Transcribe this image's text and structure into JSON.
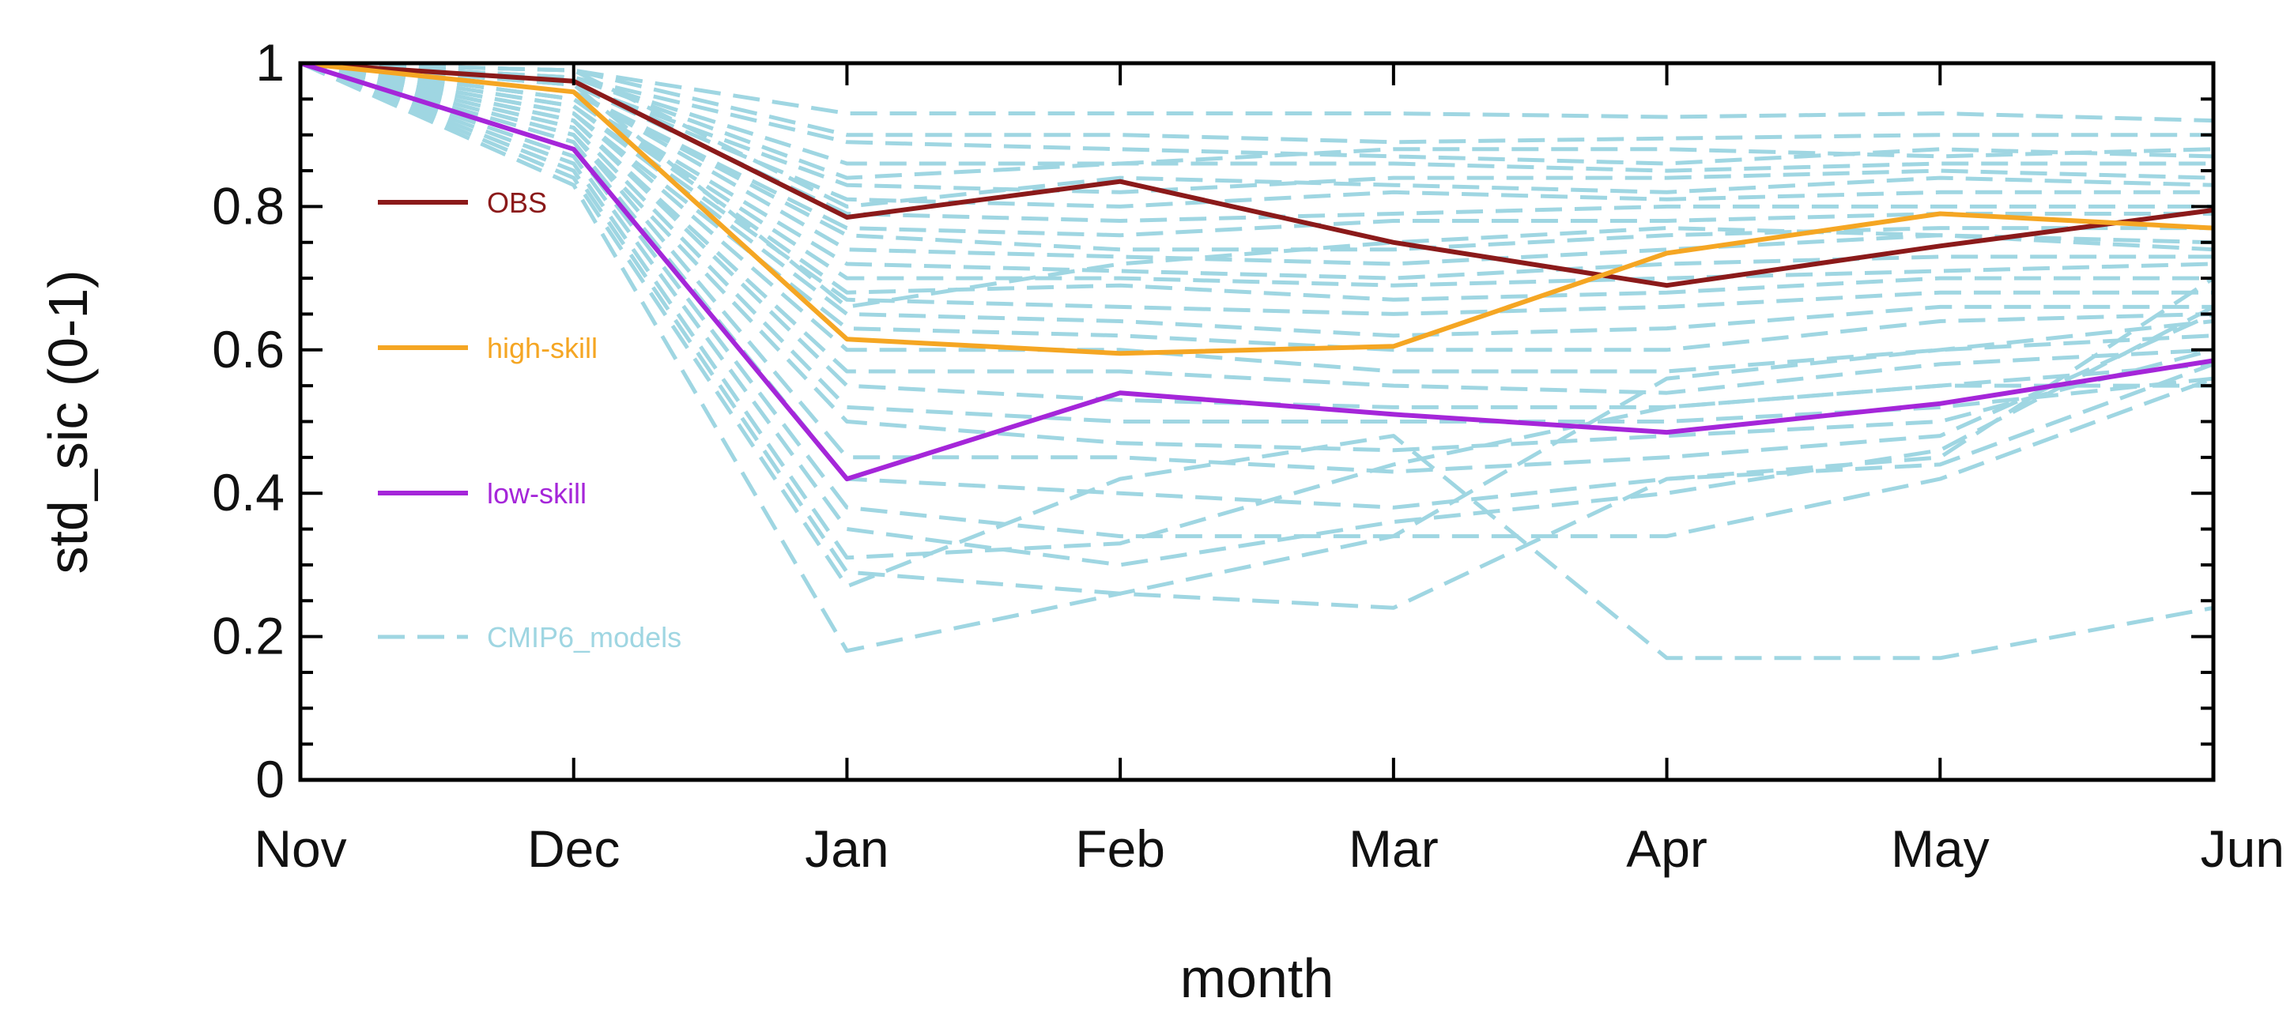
{
  "chart_data": {
    "type": "line",
    "title": "",
    "xlabel": "month",
    "ylabel": "std_sic (0-1)",
    "categories": [
      "Nov",
      "Dec",
      "Jan",
      "Feb",
      "Mar",
      "Apr",
      "May",
      "Jun"
    ],
    "ylim": [
      0,
      1
    ],
    "yticks": [
      "0",
      "0.2",
      "0.4",
      "0.6",
      "0.8",
      "1"
    ],
    "ytick_values": [
      0,
      0.2,
      0.4,
      0.6,
      0.8,
      1
    ],
    "grid": false,
    "legend_placement": "left",
    "legend": [
      "OBS",
      "high-skill",
      "low-skill",
      "CMIP6_models"
    ],
    "series": [
      {
        "name": "OBS",
        "color": "#8b1a1a",
        "style": "solid",
        "values": [
          1.0,
          0.975,
          0.785,
          0.835,
          0.75,
          0.69,
          0.745,
          0.795
        ]
      },
      {
        "name": "high-skill",
        "color": "#f5a623",
        "style": "solid",
        "values": [
          1.0,
          0.96,
          0.615,
          0.595,
          0.605,
          0.735,
          0.79,
          0.77
        ]
      },
      {
        "name": "low-skill",
        "color": "#a526d9",
        "style": "solid",
        "values": [
          1.0,
          0.88,
          0.42,
          0.54,
          0.51,
          0.485,
          0.525,
          0.585
        ]
      }
    ],
    "models": {
      "name": "CMIP6_models",
      "color": "#9fd6e2",
      "style": "dashed",
      "series": [
        [
          1.0,
          0.99,
          0.93,
          0.93,
          0.93,
          0.925,
          0.93,
          0.92
        ],
        [
          1.0,
          0.99,
          0.9,
          0.9,
          0.89,
          0.895,
          0.9,
          0.9
        ],
        [
          1.0,
          0.98,
          0.89,
          0.88,
          0.87,
          0.86,
          0.88,
          0.87
        ],
        [
          1.0,
          0.98,
          0.86,
          0.86,
          0.88,
          0.88,
          0.87,
          0.88
        ],
        [
          1.0,
          0.98,
          0.84,
          0.86,
          0.86,
          0.85,
          0.86,
          0.86
        ],
        [
          1.0,
          0.97,
          0.83,
          0.82,
          0.84,
          0.84,
          0.85,
          0.84
        ],
        [
          1.0,
          0.97,
          0.81,
          0.8,
          0.82,
          0.81,
          0.82,
          0.82
        ],
        [
          1.0,
          0.97,
          0.79,
          0.78,
          0.79,
          0.8,
          0.8,
          0.8
        ],
        [
          1.0,
          0.96,
          0.77,
          0.76,
          0.78,
          0.78,
          0.79,
          0.79
        ],
        [
          1.0,
          0.96,
          0.76,
          0.74,
          0.74,
          0.76,
          0.77,
          0.77
        ],
        [
          1.0,
          0.96,
          0.74,
          0.73,
          0.72,
          0.74,
          0.76,
          0.75
        ],
        [
          1.0,
          0.95,
          0.72,
          0.71,
          0.7,
          0.72,
          0.73,
          0.73
        ],
        [
          1.0,
          0.95,
          0.7,
          0.7,
          0.69,
          0.7,
          0.71,
          0.72
        ],
        [
          1.0,
          0.95,
          0.68,
          0.69,
          0.67,
          0.68,
          0.7,
          0.7
        ],
        [
          1.0,
          0.94,
          0.67,
          0.66,
          0.65,
          0.66,
          0.68,
          0.68
        ],
        [
          1.0,
          0.94,
          0.65,
          0.64,
          0.62,
          0.63,
          0.66,
          0.66
        ],
        [
          1.0,
          0.93,
          0.63,
          0.62,
          0.6,
          0.6,
          0.64,
          0.65
        ],
        [
          1.0,
          0.93,
          0.6,
          0.6,
          0.57,
          0.57,
          0.6,
          0.62
        ],
        [
          1.0,
          0.92,
          0.57,
          0.57,
          0.55,
          0.54,
          0.58,
          0.6
        ],
        [
          1.0,
          0.92,
          0.55,
          0.53,
          0.52,
          0.52,
          0.55,
          0.58
        ],
        [
          1.0,
          0.91,
          0.52,
          0.5,
          0.5,
          0.5,
          0.52,
          0.56
        ],
        [
          1.0,
          0.9,
          0.5,
          0.47,
          0.46,
          0.48,
          0.5,
          0.6
        ],
        [
          1.0,
          0.9,
          0.45,
          0.45,
          0.43,
          0.45,
          0.48,
          0.65
        ],
        [
          1.0,
          0.89,
          0.42,
          0.4,
          0.38,
          0.42,
          0.45,
          0.7
        ],
        [
          1.0,
          0.88,
          0.38,
          0.34,
          0.34,
          0.34,
          0.42,
          0.56
        ],
        [
          1.0,
          0.87,
          0.35,
          0.3,
          0.36,
          0.4,
          0.46,
          0.66
        ],
        [
          1.0,
          0.86,
          0.31,
          0.33,
          0.44,
          0.52,
          0.55,
          0.55
        ],
        [
          1.0,
          0.85,
          0.29,
          0.26,
          0.24,
          0.42,
          0.44,
          0.58
        ],
        [
          1.0,
          0.84,
          0.27,
          0.42,
          0.48,
          0.17,
          0.17,
          0.24
        ],
        [
          1.0,
          0.83,
          0.18,
          0.26,
          0.34,
          0.56,
          0.6,
          0.64
        ],
        [
          1.0,
          0.99,
          0.8,
          0.84,
          0.83,
          0.82,
          0.84,
          0.83
        ],
        [
          1.0,
          0.97,
          0.66,
          0.72,
          0.75,
          0.77,
          0.76,
          0.74
        ]
      ]
    }
  }
}
